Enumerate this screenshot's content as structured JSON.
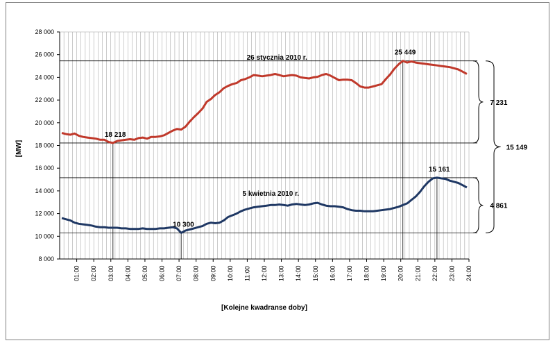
{
  "chart_data": {
    "type": "line",
    "xlabel": "[Kolejne kwadranse  doby]",
    "ylabel": "[MW]",
    "ylim": [
      8000,
      28000
    ],
    "y_ticks": [
      "8 000",
      "10 000",
      "12 000",
      "14 000",
      "16 000",
      "18 000",
      "20 000",
      "22 000",
      "24 000",
      "26 000",
      "28 000"
    ],
    "x_ticks": [
      "01:00",
      "02:00",
      "03:00",
      "04:00",
      "05:00",
      "06:00",
      "07:00",
      "08:00",
      "09:00",
      "10:00",
      "11:00",
      "12:00",
      "13:00",
      "14:00",
      "15:00",
      "16:00",
      "17:00",
      "18:00",
      "19:00",
      "20:00",
      "21:00",
      "22:00",
      "23:00",
      "24:00"
    ],
    "grid": "vertical lines per quarter-hour, horizontal lines at min/max levels",
    "series": [
      {
        "name": "26 stycznia 2010 r.",
        "color": "#c0392b",
        "values": [
          19100,
          19000,
          18950,
          19050,
          18850,
          18750,
          18700,
          18650,
          18600,
          18500,
          18500,
          18300,
          18218,
          18400,
          18450,
          18500,
          18550,
          18500,
          18650,
          18700,
          18600,
          18750,
          18750,
          18800,
          18900,
          19100,
          19300,
          19450,
          19400,
          19650,
          20100,
          20500,
          20850,
          21250,
          21850,
          22100,
          22450,
          22700,
          23050,
          23250,
          23400,
          23500,
          23750,
          23850,
          24000,
          24200,
          24150,
          24100,
          24150,
          24200,
          24300,
          24200,
          24100,
          24150,
          24200,
          24150,
          24000,
          23950,
          23900,
          24000,
          24050,
          24200,
          24300,
          24150,
          23950,
          23750,
          23800,
          23800,
          23750,
          23500,
          23200,
          23100,
          23100,
          23200,
          23300,
          23400,
          23850,
          24250,
          24750,
          25150,
          25449,
          25300,
          25400,
          25300,
          25250,
          25200,
          25150,
          25100,
          25050,
          25000,
          24950,
          24900,
          24800,
          24700,
          24500,
          24300
        ],
        "annotations": [
          {
            "label": "18 218",
            "index": 12,
            "value": 18218
          },
          {
            "label": "25 449",
            "index": 80,
            "value": 25449
          }
        ]
      },
      {
        "name": "5 kwietnia 2010 r.",
        "color": "#1f3864",
        "values": [
          11600,
          11500,
          11400,
          11200,
          11100,
          11050,
          11000,
          10950,
          10850,
          10800,
          10800,
          10750,
          10750,
          10750,
          10700,
          10700,
          10650,
          10650,
          10650,
          10700,
          10650,
          10650,
          10650,
          10700,
          10700,
          10750,
          10800,
          10700,
          10300,
          10500,
          10600,
          10700,
          10800,
          10900,
          11100,
          11200,
          11150,
          11200,
          11400,
          11700,
          11850,
          12000,
          12200,
          12350,
          12450,
          12550,
          12600,
          12650,
          12700,
          12750,
          12750,
          12800,
          12750,
          12700,
          12800,
          12850,
          12800,
          12750,
          12800,
          12900,
          12950,
          12800,
          12700,
          12650,
          12650,
          12600,
          12550,
          12400,
          12300,
          12250,
          12250,
          12200,
          12200,
          12200,
          12250,
          12300,
          12350,
          12400,
          12500,
          12600,
          12750,
          12900,
          13200,
          13500,
          13900,
          14400,
          14800,
          15100,
          15161,
          15100,
          15050,
          14900,
          14800,
          14700,
          14500,
          14300
        ],
        "annotations": [
          {
            "label": "10 300",
            "index": 28,
            "value": 10300
          },
          {
            "label": "15 161",
            "index": 88,
            "value": 15161
          }
        ]
      }
    ],
    "brackets": [
      {
        "label": "7 231",
        "from": 18218,
        "to": 25449
      },
      {
        "label": "4 861",
        "from": 10300,
        "to": 15161
      },
      {
        "label": "15 149",
        "from": 10300,
        "to": 25449
      }
    ]
  }
}
